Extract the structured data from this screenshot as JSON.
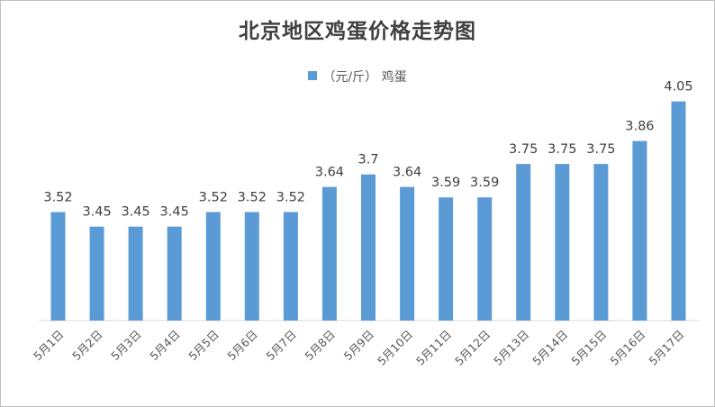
{
  "chart_data": {
    "type": "bar",
    "title": "北京地区鸡蛋价格走势图",
    "xlabel": "",
    "ylabel": "",
    "categories": [
      "5月1日",
      "5月2日",
      "5月3日",
      "5月4日",
      "5月5日",
      "5月6日",
      "5月7日",
      "5月8日",
      "5月9日",
      "5月10日",
      "5月11日",
      "5月12日",
      "5月13日",
      "5月14日",
      "5月15日",
      "5月16日",
      "5月17日"
    ],
    "series": [
      {
        "name": "（元/斤） 鸡蛋",
        "values": [
          3.52,
          3.45,
          3.45,
          3.45,
          3.52,
          3.52,
          3.52,
          3.64,
          3.7,
          3.64,
          3.59,
          3.59,
          3.75,
          3.75,
          3.75,
          3.86,
          4.05
        ],
        "labels": [
          "3.52",
          "3.45",
          "3.45",
          "3.45",
          "3.52",
          "3.52",
          "3.52",
          "3.64",
          "3.7",
          "3.64",
          "3.59",
          "3.59",
          "3.75",
          "3.75",
          "3.75",
          "3.86",
          "4.05"
        ],
        "color": "#5b9bd5"
      }
    ],
    "ylim": [
      3.0,
      4.1
    ],
    "grid": false,
    "legend": "top-center"
  }
}
